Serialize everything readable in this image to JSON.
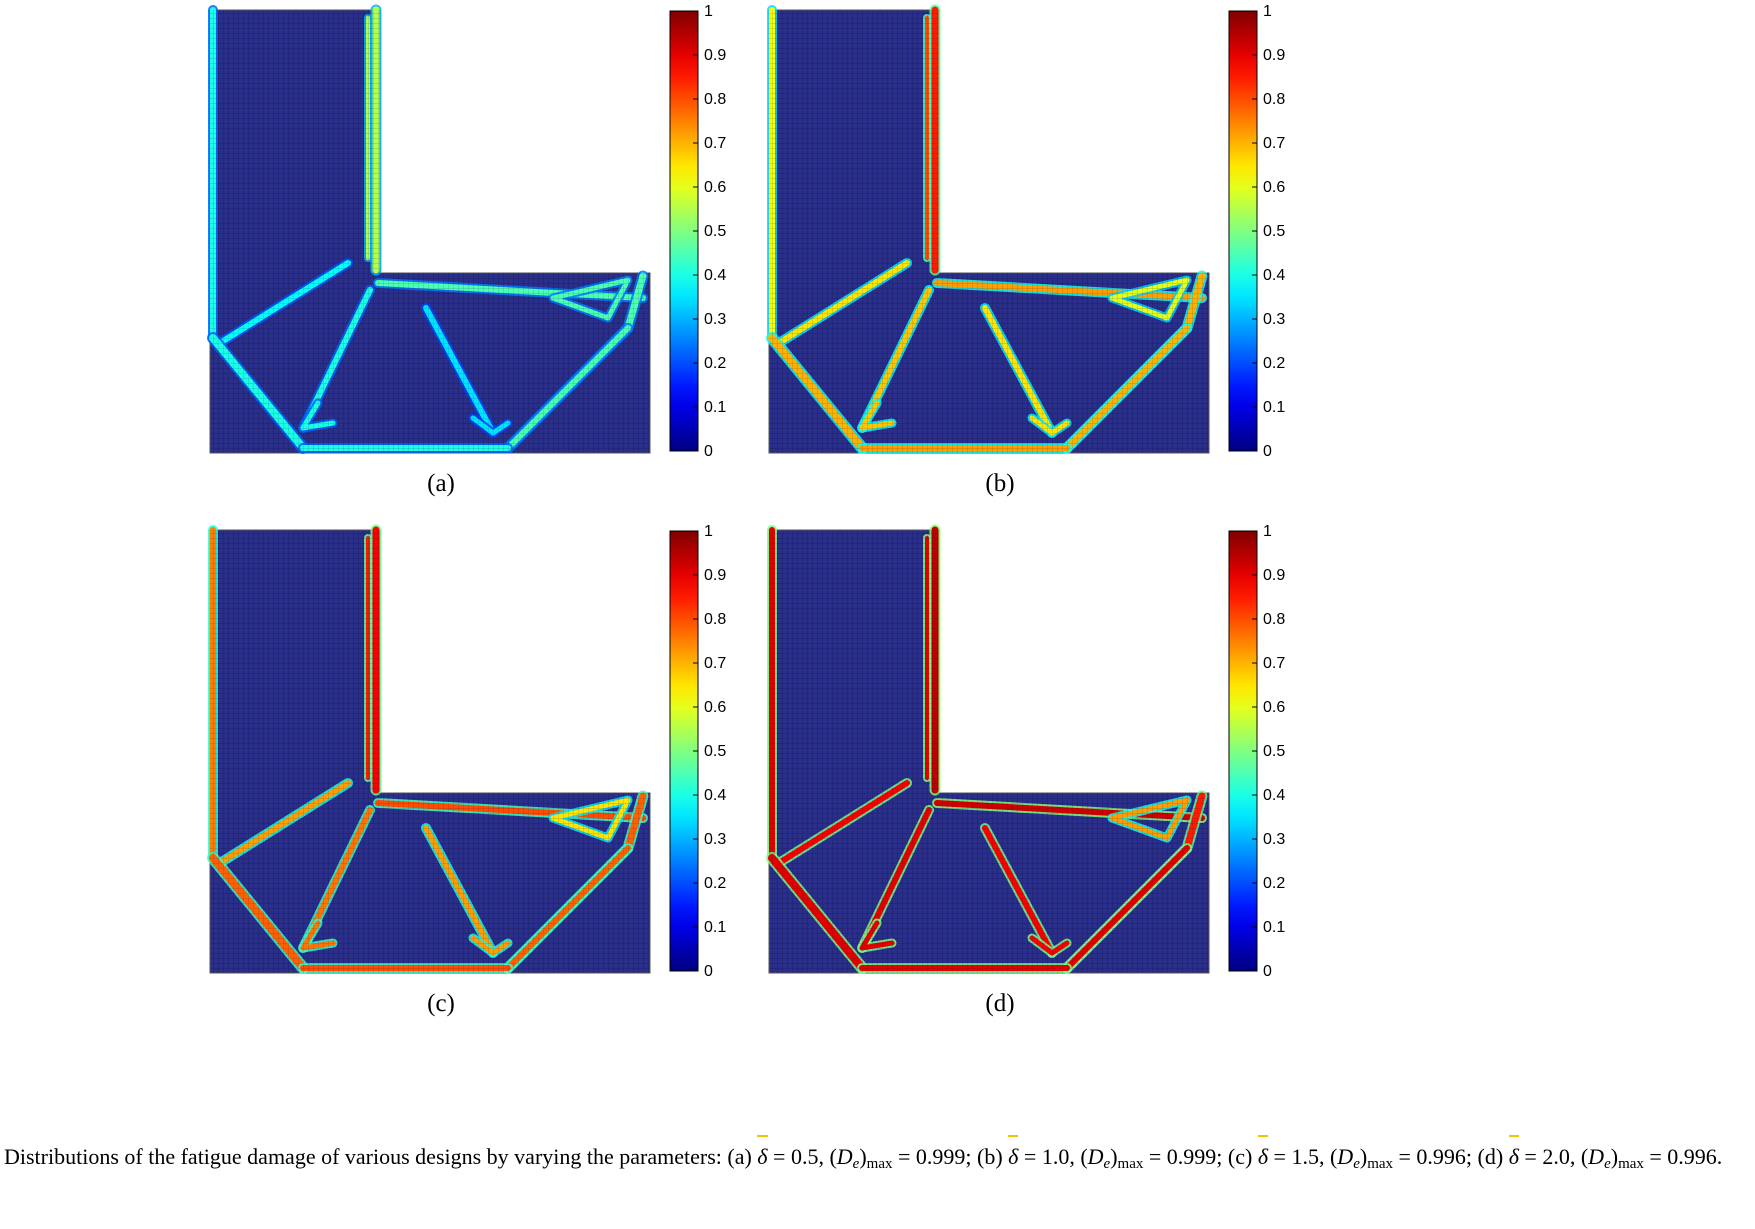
{
  "chart_data": [
    {
      "panel_label": "(a)",
      "type": "heatmap",
      "colorbar": {
        "min": 0,
        "max": 1,
        "ticks": [
          "0",
          "0.1",
          "0.2",
          "0.3",
          "0.4",
          "0.5",
          "0.6",
          "0.7",
          "0.8",
          "0.9",
          "1"
        ]
      },
      "member_values": {
        "left_edge": 0.4,
        "right_edge": 0.55,
        "inner_edge": 0.55,
        "strut_left": 0.38,
        "diag_a": 0.4,
        "diag_b": 0.35,
        "arm_top": 0.45,
        "right_outer": 0.45,
        "bottom_diag_left": 0.4,
        "bottom_diag_right": 0.45,
        "bottom_edge": 0.4,
        "triangle": 0.45
      }
    },
    {
      "panel_label": "(b)",
      "type": "heatmap",
      "colorbar": {
        "min": 0,
        "max": 1,
        "ticks": [
          "0",
          "0.1",
          "0.2",
          "0.3",
          "0.4",
          "0.5",
          "0.6",
          "0.7",
          "0.8",
          "0.9",
          "1"
        ]
      },
      "member_values": {
        "left_edge": 0.62,
        "right_edge": 0.85,
        "inner_edge": 0.8,
        "strut_left": 0.65,
        "diag_a": 0.68,
        "diag_b": 0.65,
        "arm_top": 0.72,
        "right_outer": 0.7,
        "bottom_diag_left": 0.7,
        "bottom_diag_right": 0.7,
        "bottom_edge": 0.72,
        "triangle": 0.6
      }
    },
    {
      "panel_label": "(c)",
      "type": "heatmap",
      "colorbar": {
        "min": 0,
        "max": 1,
        "ticks": [
          "0",
          "0.1",
          "0.2",
          "0.3",
          "0.4",
          "0.5",
          "0.6",
          "0.7",
          "0.8",
          "0.9",
          "1"
        ]
      },
      "member_values": {
        "left_edge": 0.75,
        "right_edge": 0.88,
        "inner_edge": 0.85,
        "strut_left": 0.72,
        "diag_a": 0.76,
        "diag_b": 0.72,
        "arm_top": 0.8,
        "right_outer": 0.78,
        "bottom_diag_left": 0.78,
        "bottom_diag_right": 0.78,
        "bottom_edge": 0.8,
        "triangle": 0.65
      }
    },
    {
      "panel_label": "(d)",
      "type": "heatmap",
      "colorbar": {
        "min": 0,
        "max": 1,
        "ticks": [
          "0",
          "0.1",
          "0.2",
          "0.3",
          "0.4",
          "0.5",
          "0.6",
          "0.7",
          "0.8",
          "0.9",
          "1"
        ]
      },
      "member_values": {
        "left_edge": 0.9,
        "right_edge": 0.94,
        "inner_edge": 0.9,
        "strut_left": 0.88,
        "diag_a": 0.9,
        "diag_b": 0.88,
        "arm_top": 0.92,
        "right_outer": 0.85,
        "bottom_diag_left": 0.9,
        "bottom_diag_right": 0.9,
        "bottom_edge": 0.9,
        "triangle": 0.72
      }
    }
  ],
  "caption": {
    "intro": "Distributions of the fatigue damage of various designs by varying the parameters: (a)",
    "eq_a1": "= 0.5,",
    "eq_a2": "= 0.999; (b)",
    "eq_b1": "= 1.0,",
    "eq_b2": "= 0.999; (c)",
    "eq_c1": "= 1.5,",
    "eq_c2": "= 0.996; (d)",
    "eq_d1": "= 2.0,",
    "eq_d2": "= 0.996.",
    "delta": "δ",
    "D": "D",
    "e": "e",
    "max": "max"
  },
  "colors": {
    "background_field": "#2b2f8c",
    "grid_line": "#1e2270"
  }
}
